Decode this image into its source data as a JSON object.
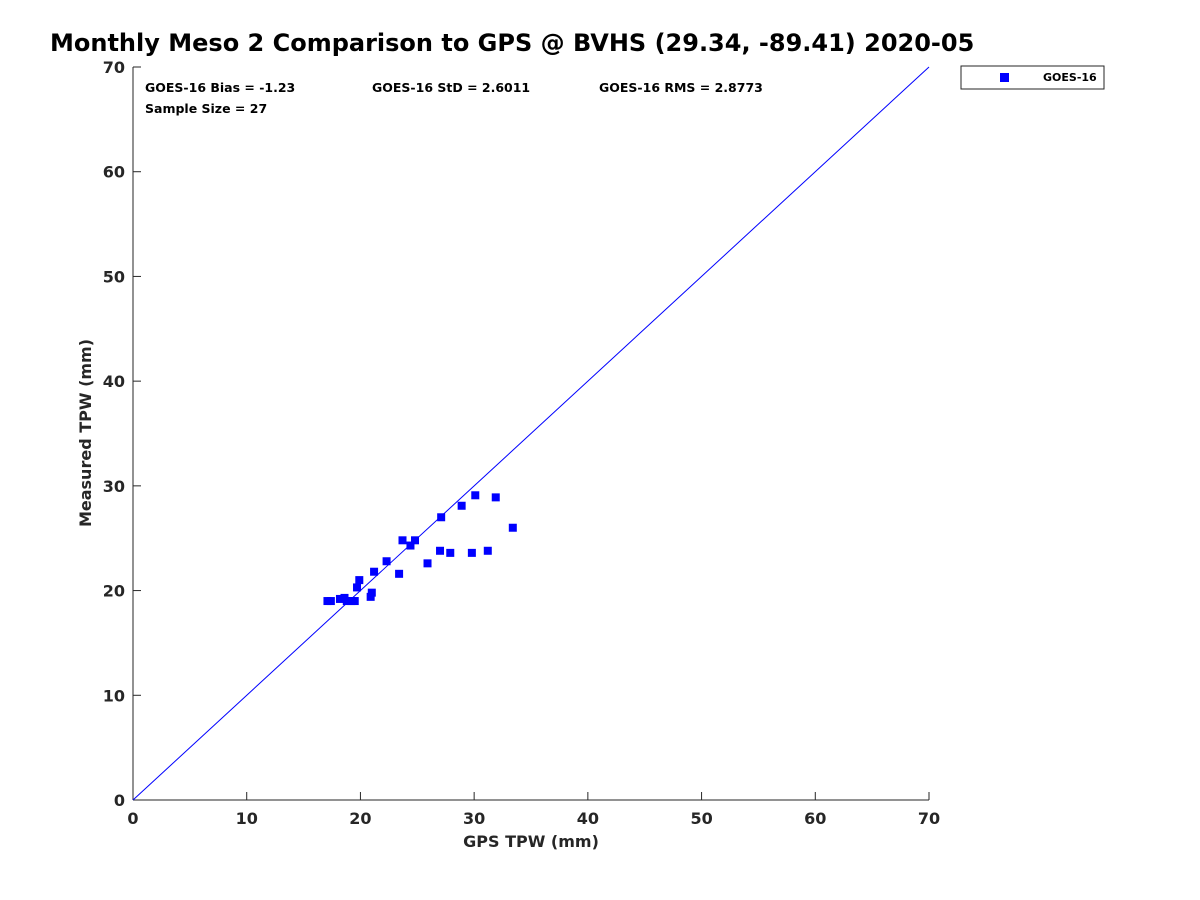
{
  "chart_data": {
    "type": "scatter",
    "title": "Monthly Meso 2 Comparison to GPS @ BVHS (29.34, -89.41) 2020-05",
    "xlabel": "GPS TPW (mm)",
    "ylabel": "Measured TPW (mm)",
    "xlim": [
      0,
      70
    ],
    "ylim": [
      0,
      70
    ],
    "xticks": [
      0,
      10,
      20,
      30,
      40,
      50,
      60,
      70
    ],
    "yticks": [
      0,
      10,
      20,
      30,
      40,
      50,
      60,
      70
    ],
    "grid": false,
    "legend_position": "outside top-right",
    "reference_line": {
      "from": [
        0,
        0
      ],
      "to": [
        70,
        70
      ],
      "color": "#0000ff"
    },
    "stats": {
      "bias": "GOES-16 Bias = -1.23",
      "std": "GOES-16 StD = 2.6011",
      "rms": "GOES-16 RMS = 2.8773",
      "sample_size": "Sample Size = 27"
    },
    "series": [
      {
        "name": "GOES-16",
        "color": "#0000ff",
        "marker": "square",
        "points": [
          [
            17.1,
            19.0
          ],
          [
            17.4,
            19.0
          ],
          [
            18.2,
            19.2
          ],
          [
            18.6,
            19.3
          ],
          [
            18.8,
            19.0
          ],
          [
            19.2,
            19.0
          ],
          [
            19.5,
            19.0
          ],
          [
            19.7,
            20.3
          ],
          [
            19.9,
            21.0
          ],
          [
            20.9,
            19.4
          ],
          [
            21.0,
            19.8
          ],
          [
            21.2,
            21.8
          ],
          [
            22.3,
            22.8
          ],
          [
            23.4,
            21.6
          ],
          [
            23.7,
            24.8
          ],
          [
            24.4,
            24.3
          ],
          [
            24.8,
            24.8
          ],
          [
            25.9,
            22.6
          ],
          [
            27.0,
            23.8
          ],
          [
            27.1,
            27.0
          ],
          [
            27.9,
            23.6
          ],
          [
            28.9,
            28.1
          ],
          [
            29.8,
            23.6
          ],
          [
            30.1,
            29.1
          ],
          [
            31.2,
            23.8
          ],
          [
            31.9,
            28.9
          ],
          [
            33.4,
            26.0
          ]
        ]
      }
    ]
  }
}
